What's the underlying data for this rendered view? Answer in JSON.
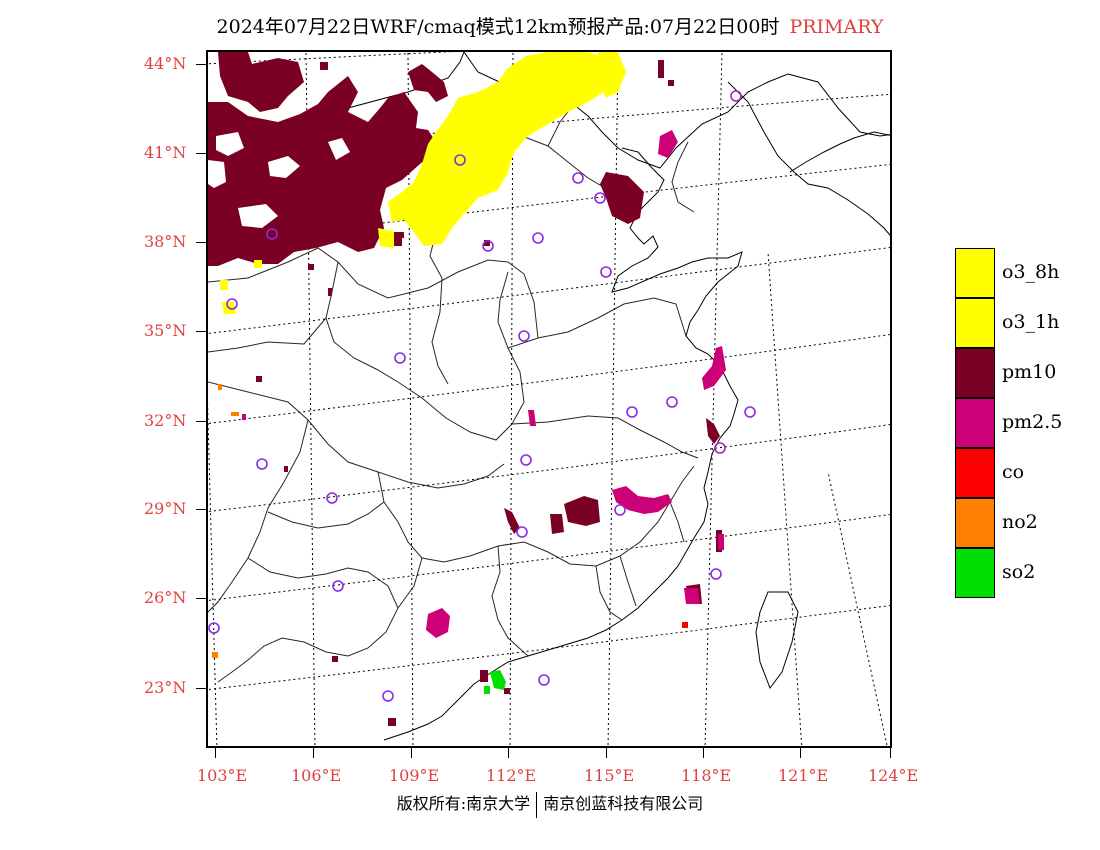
{
  "header": {
    "title": "2024年07月22日WRF/cmaq模式12km预报产品:07月22日00时",
    "tag": "PRIMARY"
  },
  "map": {
    "lat_labels": [
      "44°N",
      "41°N",
      "38°N",
      "35°N",
      "32°N",
      "29°N",
      "26°N",
      "23°N"
    ],
    "lon_labels": [
      "103°E",
      "106°E",
      "109°E",
      "112°E",
      "115°E",
      "118°E",
      "121°E",
      "124°E"
    ],
    "colors": {
      "pm10": "#7a0024",
      "pm25": "#cc0077",
      "o3": "#ffff00",
      "co": "#ff0000",
      "no2": "#ff7f00",
      "so2": "#00e000",
      "station": "#8a2be2",
      "label": "#e04040"
    }
  },
  "legend": [
    {
      "label": "o3_8h",
      "color": "#ffff00"
    },
    {
      "label": "o3_1h",
      "color": "#ffff00"
    },
    {
      "label": "pm10",
      "color": "#7a0024"
    },
    {
      "label": "pm2.5",
      "color": "#cc0077"
    },
    {
      "label": "co",
      "color": "#ff0000"
    },
    {
      "label": "no2",
      "color": "#ff7f00"
    },
    {
      "label": "so2",
      "color": "#00e000"
    }
  ],
  "footer": {
    "left": "版权所有:南京大学",
    "right": "南京创蓝科技有限公司"
  }
}
